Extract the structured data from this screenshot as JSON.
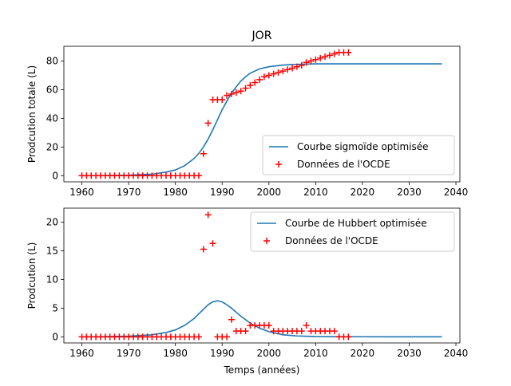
{
  "figure_title": "JOR",
  "xlabel_shared": "Temps (années)",
  "colors": {
    "model": "#1f77b4",
    "data": "#ff0000"
  },
  "chart_data": [
    {
      "type": "line",
      "title": "JOR",
      "xlabel": "",
      "ylabel": "Prodcution totale (L)",
      "xlim": [
        1956.15,
        2040.85
      ],
      "ylim": [
        -4.3,
        90.3
      ],
      "xticks": [
        1960,
        1970,
        1980,
        1990,
        2000,
        2010,
        2020,
        2030,
        2040
      ],
      "yticks": [
        0,
        20,
        40,
        60,
        80
      ],
      "grid": false,
      "legend_position": "lower-right",
      "series": [
        {
          "name": "Courbe sigmoïde optimisée",
          "kind": "line",
          "x": [
            1960,
            1965,
            1970,
            1975,
            1978,
            1980,
            1982,
            1984,
            1985,
            1986,
            1987,
            1988,
            1989,
            1990,
            1991,
            1992,
            1993,
            1994,
            1995,
            1996,
            1998,
            2000,
            2003,
            2006,
            2010,
            2015,
            2020,
            2025,
            2030,
            2037
          ],
          "y": [
            0,
            0.1,
            0.3,
            1.0,
            2.5,
            4.0,
            7.0,
            12.0,
            15.5,
            20.0,
            25.5,
            32.0,
            39.0,
            46.0,
            52.0,
            57.5,
            62.0,
            66.0,
            69.0,
            71.5,
            74.5,
            76.0,
            77.2,
            77.7,
            78.0,
            78.0,
            78.0,
            78.0,
            78.0,
            78.0
          ]
        },
        {
          "name": "Données de l'OCDE",
          "kind": "scatter",
          "x": [
            1960,
            1961,
            1962,
            1963,
            1964,
            1965,
            1966,
            1967,
            1968,
            1969,
            1970,
            1971,
            1972,
            1973,
            1974,
            1975,
            1976,
            1977,
            1978,
            1979,
            1980,
            1981,
            1982,
            1983,
            1984,
            1985,
            1986,
            1987,
            1988,
            1989,
            1990,
            1991,
            1992,
            1993,
            1994,
            1995,
            1996,
            1997,
            1998,
            1999,
            2000,
            2001,
            2002,
            2003,
            2004,
            2005,
            2006,
            2007,
            2008,
            2009,
            2010,
            2011,
            2012,
            2013,
            2014,
            2015,
            2016,
            2017
          ],
          "y": [
            0,
            0,
            0,
            0,
            0,
            0,
            0,
            0,
            0,
            0,
            0,
            0,
            0,
            0,
            0,
            0,
            0,
            0,
            0,
            0,
            0,
            0,
            0,
            0,
            0,
            0,
            15.3,
            36.7,
            53,
            53,
            53,
            56,
            57,
            58,
            59,
            61,
            63,
            65,
            67,
            69,
            70,
            71,
            72,
            73,
            74,
            75,
            76,
            77,
            79,
            80,
            81,
            82,
            83,
            84,
            85,
            86,
            86,
            86
          ]
        }
      ]
    },
    {
      "type": "line",
      "title": "",
      "xlabel": "Temps (années)",
      "ylabel": "Prodcution (L)",
      "xlim": [
        1956.15,
        2040.85
      ],
      "ylim": [
        -1.07,
        22.47
      ],
      "xticks": [
        1960,
        1970,
        1980,
        1990,
        2000,
        2010,
        2020,
        2030,
        2040
      ],
      "yticks": [
        0,
        5,
        10,
        15,
        20
      ],
      "grid": false,
      "legend_position": "upper-right",
      "series": [
        {
          "name": "Courbe de Hubbert optimisée",
          "kind": "line",
          "x": [
            1960,
            1965,
            1970,
            1975,
            1978,
            1980,
            1982,
            1984,
            1985,
            1986,
            1987,
            1988,
            1989,
            1990,
            1991,
            1992,
            1993,
            1994,
            1995,
            1996,
            1998,
            2000,
            2003,
            2006,
            2010,
            2015,
            2020,
            2025,
            2030,
            2037
          ],
          "y": [
            0,
            0.03,
            0.1,
            0.35,
            0.75,
            1.2,
            2.0,
            3.2,
            4.0,
            4.8,
            5.6,
            6.1,
            6.3,
            6.1,
            5.6,
            5.0,
            4.3,
            3.6,
            3.0,
            2.4,
            1.5,
            0.9,
            0.35,
            0.15,
            0.05,
            0.02,
            0.01,
            0,
            0,
            0
          ]
        },
        {
          "name": "Données de l'OCDE",
          "kind": "scatter",
          "x": [
            1960,
            1961,
            1962,
            1963,
            1964,
            1965,
            1966,
            1967,
            1968,
            1969,
            1970,
            1971,
            1972,
            1973,
            1974,
            1975,
            1976,
            1977,
            1978,
            1979,
            1980,
            1981,
            1982,
            1983,
            1984,
            1985,
            1986,
            1987,
            1988,
            1989,
            1990,
            1991,
            1992,
            1993,
            1994,
            1995,
            1996,
            1997,
            1998,
            1999,
            2000,
            2001,
            2002,
            2003,
            2004,
            2005,
            2006,
            2007,
            2008,
            2009,
            2010,
            2011,
            2012,
            2013,
            2014,
            2015,
            2016,
            2017
          ],
          "y": [
            0,
            0,
            0,
            0,
            0,
            0,
            0,
            0,
            0,
            0,
            0,
            0,
            0,
            0,
            0,
            0,
            0,
            0,
            0,
            0,
            0,
            0,
            0,
            0,
            0,
            0,
            15.3,
            21.3,
            16.3,
            0,
            0,
            0,
            3,
            1,
            1,
            1,
            2,
            2,
            2,
            2,
            2,
            1,
            1,
            1,
            1,
            1,
            1,
            1,
            2,
            1,
            1,
            1,
            1,
            1,
            1,
            0,
            0,
            0
          ]
        }
      ]
    }
  ]
}
